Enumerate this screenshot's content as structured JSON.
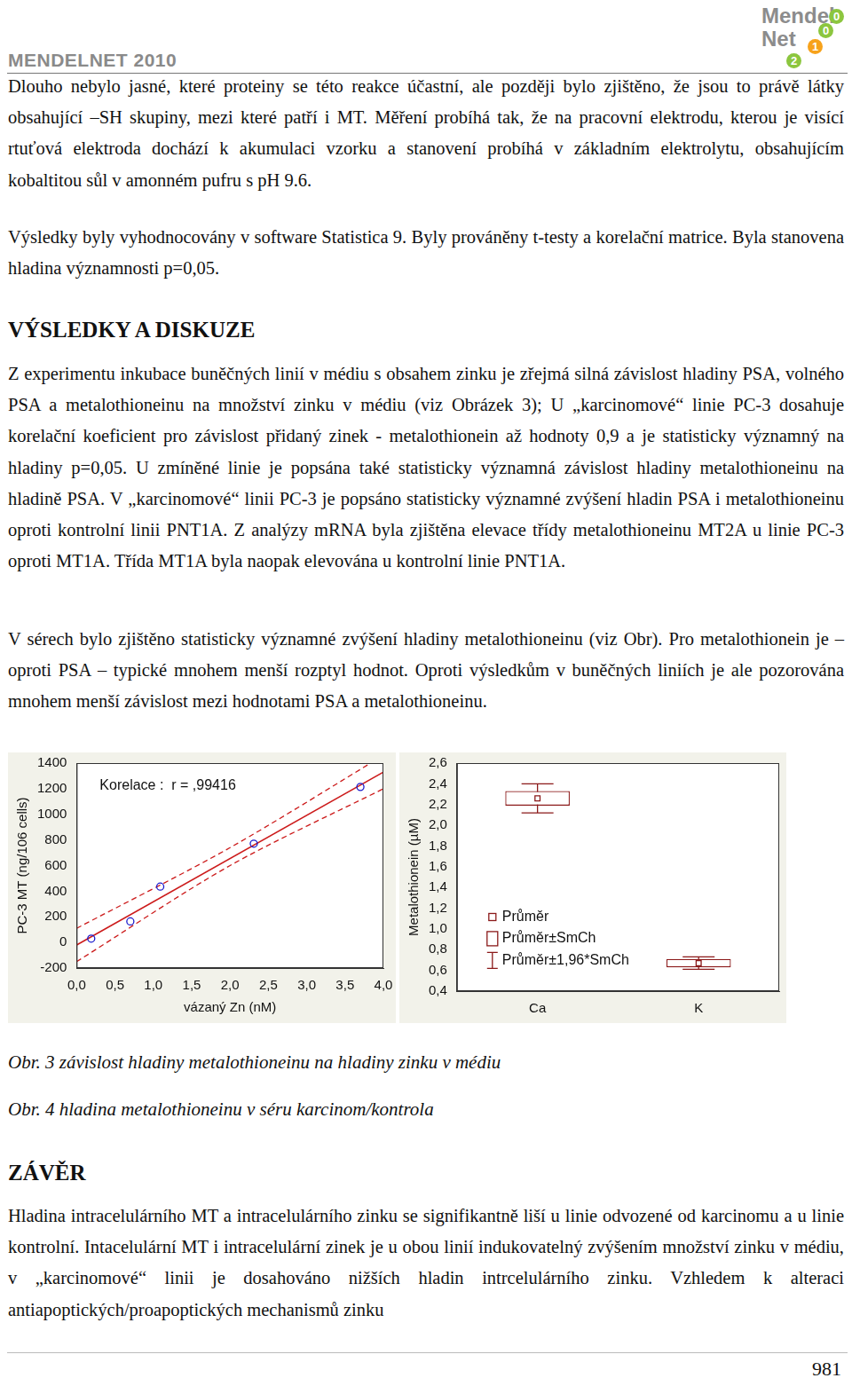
{
  "header": {
    "title": "MENDELNET 2010",
    "logo": {
      "line1": "Mendel",
      "line2": "Net",
      "digits": [
        "0",
        "1",
        "0",
        "2"
      ]
    }
  },
  "paragraphs": [
    "Dlouho nebylo jasné, které proteiny se této reakce účastní, ale později bylo zjištěno, že jsou to právě látky obsahující –SH skupiny, mezi které patří i MT. Měření probíhá tak, že na pracovní elektrodu, kterou je visící rtuťová elektroda dochází k akumulaci vzorku a stanovení probíhá v základním elektrolytu, obsahujícím kobaltitou sůl v amonném pufru s pH 9.6.",
    "Výsledky byly vyhodnocovány v software Statistica 9. Byly prováněny t-testy a korelační matrice. Byla stanovena hladina významnosti p=0,05."
  ],
  "section1": {
    "heading": "VÝSLEDKY A DISKUZE",
    "paragraphs": [
      "Z experimentu inkubace buněčných linií v médiu s obsahem zinku je zřejmá silná závislost hladiny PSA, volného PSA a metalothioneinu na množství zinku v médiu (viz Obrázek 3); U „karcinomové“ linie PC-3 dosahuje korelační koeficient pro závislost přidaný zinek - metalothionein až hodnoty 0,9 a je statisticky významný na hladiny p=0,05. U zmíněné linie je popsána také statisticky významná závislost hladiny metalothioneinu na hladině PSA. V „karcinomové“ linii PC-3 je popsáno statisticky významné zvýšení hladin PSA i metalothioneinu oproti kontrolní linii PNT1A. Z analýzy mRNA byla zjištěna elevace třídy metalothioneinu MT2A u linie PC-3 oproti MT1A. Třída MT1A byla naopak elevována u kontrolní linie PNT1A.",
      "V sérech bylo zjištěno statisticky významné zvýšení hladiny metalothioneinu (viz Obr). Pro metalothionein je – oproti PSA – typické mnohem menší rozptyl hodnot. Oproti výsledkům v buněčných liniích je ale pozorována mnohem menší závislost mezi hodnotami PSA a metalothioneinu."
    ]
  },
  "chart_data": [
    {
      "type": "scatter",
      "x_label": "vázaný Zn (nM)",
      "y_label": "PC-3 MT (ng/106 cells)",
      "annotation": "Korelace :  r = ,99416",
      "x": [
        0.19,
        0.7,
        1.09,
        2.31,
        3.7
      ],
      "values": [
        30,
        164,
        436,
        771,
        1214
      ],
      "marker": "circle",
      "color": "#1a1acc",
      "fit": {
        "x": [
          0,
          4
        ],
        "values": [
          -20,
          1330
        ],
        "color": "#cc1a1a",
        "line_style": "solid"
      },
      "confidence_band": {
        "x": [
          0,
          2,
          4
        ],
        "upper": [
          110,
          740,
          1460
        ],
        "lower": [
          -150,
          600,
          1200
        ],
        "color": "#cc1a1a",
        "line_style": "dashed"
      },
      "xlim": [
        0,
        4
      ],
      "xticks": [
        {
          "value": 0,
          "label": "0,0"
        },
        {
          "value": 0.5,
          "label": "0,5"
        },
        {
          "value": 1,
          "label": "1,0"
        },
        {
          "value": 1.5,
          "label": "1,5"
        },
        {
          "value": 2,
          "label": "2,0"
        },
        {
          "value": 2.5,
          "label": "2,5"
        },
        {
          "value": 3,
          "label": "3,0"
        },
        {
          "value": 3.5,
          "label": "3,5"
        },
        {
          "value": 4,
          "label": "4,0"
        }
      ],
      "ylim": [
        -200,
        1400
      ],
      "yticks": [
        -200,
        0,
        200,
        400,
        600,
        800,
        1000,
        1200,
        1400
      ],
      "grid": false
    },
    {
      "type": "box",
      "y_label": "Metalothionein (µM)",
      "categories": [
        "Ca",
        "K"
      ],
      "color": "#8b1a1a",
      "series": [
        {
          "name": "Průměr",
          "marker": "square",
          "values": [
            2.26,
            0.67
          ]
        },
        {
          "name": "Průměr±SmCh",
          "low": [
            2.19,
            0.63
          ],
          "high": [
            2.33,
            0.71
          ]
        },
        {
          "name": "Průměr±1,96*SmCh",
          "low": [
            2.12,
            0.61
          ],
          "high": [
            2.4,
            0.73
          ]
        }
      ],
      "ylim": [
        0.4,
        2.6
      ],
      "yticks": [
        {
          "value": 0.4,
          "label": "0,4"
        },
        {
          "value": 0.6,
          "label": "0,6"
        },
        {
          "value": 0.8,
          "label": "0,8"
        },
        {
          "value": 1.0,
          "label": "1,0"
        },
        {
          "value": 1.2,
          "label": "1,2"
        },
        {
          "value": 1.4,
          "label": "1,4"
        },
        {
          "value": 1.6,
          "label": "1,6"
        },
        {
          "value": 1.8,
          "label": "1,8"
        },
        {
          "value": 2.0,
          "label": "2,0"
        },
        {
          "value": 2.2,
          "label": "2,2"
        },
        {
          "value": 2.4,
          "label": "2,4"
        },
        {
          "value": 2.6,
          "label": "2,6"
        }
      ],
      "legend": "lower left",
      "grid": false
    }
  ],
  "captions": [
    "Obr. 3 závislost hladiny metalothioneinu na hladiny zinku v médiu",
    "Obr. 4 hladina metalothioneinu v séru karcinom/kontrola"
  ],
  "section2": {
    "heading": "ZÁVĚR",
    "paragraphs": [
      "Hladina intracelulárního MT a intracelulárního zinku se signifikantně liší u linie odvozené od karcinomu a u linie kontrolní. Intacelulární MT i intracelulární zinek je u obou linií indukovatelný zvýšením množství zinku v médiu, v „karcinomové“ linii je dosahováno nižších hladin intrcelulárního zinku.  Vzhledem k alteraci antiapoptických/proapoptických mechanismů zinku"
    ]
  },
  "page_number": "981"
}
